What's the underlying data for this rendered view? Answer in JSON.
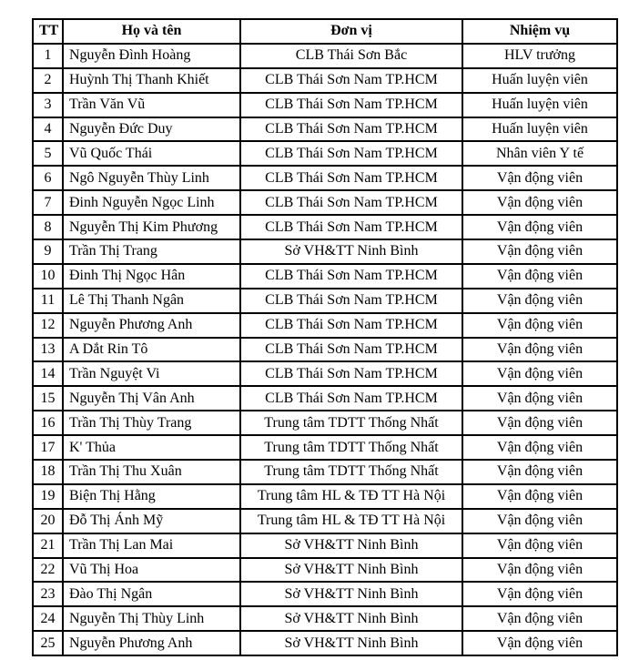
{
  "colors": {
    "background": "#ffffff",
    "border": "#000000",
    "text": "#000000"
  },
  "table": {
    "columns": [
      {
        "key": "tt",
        "label": "TT"
      },
      {
        "key": "name",
        "label": "Họ và tên"
      },
      {
        "key": "unit",
        "label": "Đơn vị"
      },
      {
        "key": "role",
        "label": "Nhiệm vụ"
      }
    ],
    "rows": [
      {
        "tt": "1",
        "name": "Nguyễn Đình Hoàng",
        "unit": "CLB Thái Sơn Bắc",
        "role": "HLV trưởng"
      },
      {
        "tt": "2",
        "name": "Huỳnh Thị Thanh Khiết",
        "unit": "CLB Thái Sơn Nam TP.HCM",
        "role": "Huấn luyện viên"
      },
      {
        "tt": "3",
        "name": "Trần Văn Vũ",
        "unit": "CLB Thái Sơn Nam TP.HCM",
        "role": "Huấn luyện viên"
      },
      {
        "tt": "4",
        "name": "Nguyễn Đức Duy",
        "unit": "CLB Thái Sơn Nam TP.HCM",
        "role": "Huấn luyện viên"
      },
      {
        "tt": "5",
        "name": "Vũ Quốc Thái",
        "unit": "CLB Thái Sơn Nam TP.HCM",
        "role": "Nhân viên Y tế"
      },
      {
        "tt": "6",
        "name": "Ngô Nguyễn Thùy Linh",
        "unit": "CLB Thái Sơn Nam TP.HCM",
        "role": "Vận động viên"
      },
      {
        "tt": "7",
        "name": "Đinh Nguyễn Ngọc Linh",
        "unit": "CLB Thái Sơn Nam TP.HCM",
        "role": "Vận động viên"
      },
      {
        "tt": "8",
        "name": "Nguyễn Thị Kim Phương",
        "unit": "CLB Thái Sơn Nam TP.HCM",
        "role": "Vận động viên"
      },
      {
        "tt": "9",
        "name": "Trần Thị Trang",
        "unit": "Sở VH&TT Ninh Bình",
        "role": "Vận động viên"
      },
      {
        "tt": "10",
        "name": "Đinh Thị Ngọc Hân",
        "unit": "CLB Thái Sơn Nam TP.HCM",
        "role": "Vận động viên"
      },
      {
        "tt": "11",
        "name": "Lê Thị Thanh Ngân",
        "unit": "CLB Thái Sơn Nam TP.HCM",
        "role": "Vận động viên"
      },
      {
        "tt": "12",
        "name": "Nguyễn Phương Anh",
        "unit": "CLB Thái Sơn Nam TP.HCM",
        "role": "Vận động viên"
      },
      {
        "tt": "13",
        "name": "A Dắt Rin Tô",
        "unit": "CLB Thái Sơn Nam TP.HCM",
        "role": "Vận động viên"
      },
      {
        "tt": "14",
        "name": "Trần Nguyệt Vi",
        "unit": "CLB Thái Sơn Nam TP.HCM",
        "role": "Vận động viên"
      },
      {
        "tt": "15",
        "name": "Nguyễn Thị Vân Anh",
        "unit": "CLB Thái Sơn Nam TP.HCM",
        "role": "Vận động viên"
      },
      {
        "tt": "16",
        "name": "Trần Thị Thùy Trang",
        "unit": "Trung tâm TDTT Thống Nhất",
        "role": "Vận động viên"
      },
      {
        "tt": "17",
        "name": "K' Thủa",
        "unit": "Trung tâm TDTT Thống Nhất",
        "role": "Vận động viên"
      },
      {
        "tt": "18",
        "name": "Trần Thị Thu Xuân",
        "unit": "Trung tâm TDTT Thống Nhất",
        "role": "Vận động viên"
      },
      {
        "tt": "19",
        "name": "Biện Thị Hằng",
        "unit": "Trung tâm HL & TĐ TT Hà Nội",
        "role": "Vận động viên"
      },
      {
        "tt": "20",
        "name": "Đỗ Thị Ánh Mỹ",
        "unit": "Trung tâm HL & TĐ TT Hà Nội",
        "role": "Vận động viên"
      },
      {
        "tt": "21",
        "name": "Trần Thị Lan Mai",
        "unit": "Sở VH&TT Ninh Bình",
        "role": "Vận động viên"
      },
      {
        "tt": "22",
        "name": "Vũ Thị Hoa",
        "unit": "Sở VH&TT Ninh Bình",
        "role": "Vận động viên"
      },
      {
        "tt": "23",
        "name": "Đào Thị Ngân",
        "unit": "Sở VH&TT Ninh Bình",
        "role": "Vận động viên"
      },
      {
        "tt": "24",
        "name": "Nguyễn Thị Thùy Linh",
        "unit": "Sở VH&TT Ninh Bình",
        "role": "Vận động viên"
      },
      {
        "tt": "25",
        "name": "Nguyễn Phương Anh",
        "unit": "Sở VH&TT Ninh Bình",
        "role": "Vận động viên"
      }
    ]
  }
}
